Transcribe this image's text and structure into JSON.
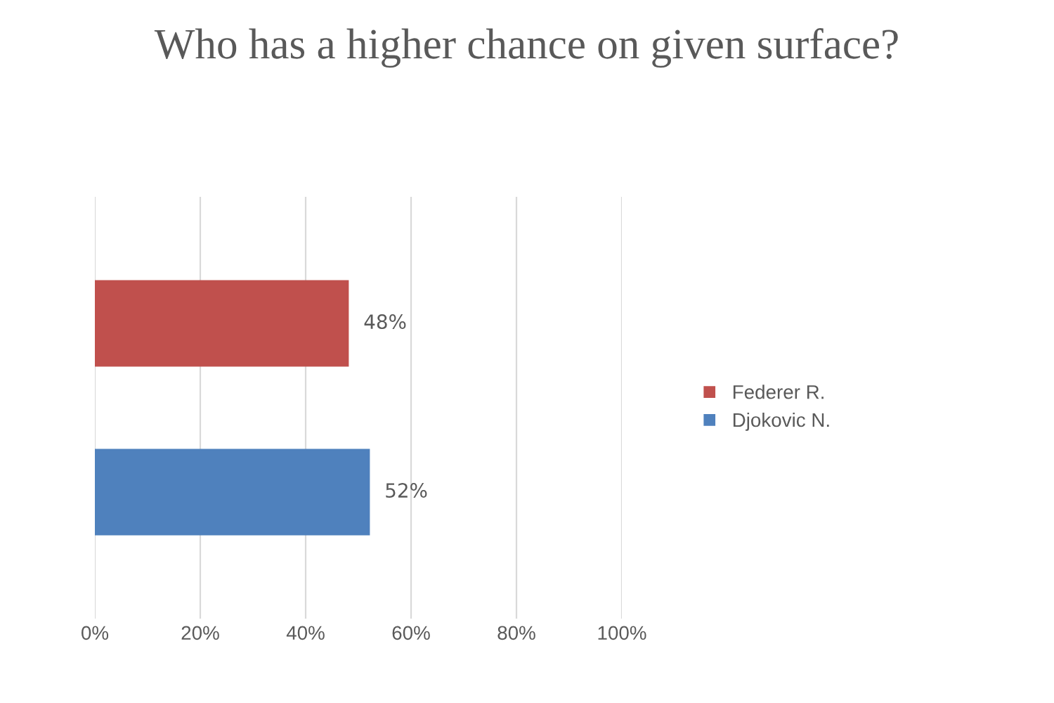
{
  "chart_data": {
    "type": "bar",
    "orientation": "horizontal",
    "title": "Who has a higher chance on given surface?",
    "categories": [
      null
    ],
    "series": [
      {
        "name": "Federer R.",
        "color": "#c0504d",
        "values": [
          48
        ],
        "value_labels": [
          "48%"
        ]
      },
      {
        "name": "Djokovic N.",
        "color": "#4f81bd",
        "values": [
          52
        ],
        "value_labels": [
          "52%"
        ]
      }
    ],
    "xlim": [
      0,
      100
    ],
    "xticks": [
      {
        "value": 0,
        "label": "0%"
      },
      {
        "value": 20,
        "label": "20%"
      },
      {
        "value": 40,
        "label": "40%"
      },
      {
        "value": 60,
        "label": "60%"
      },
      {
        "value": 80,
        "label": "80%"
      },
      {
        "value": 100,
        "label": "100%"
      }
    ],
    "grid": "x",
    "legend": "right"
  }
}
